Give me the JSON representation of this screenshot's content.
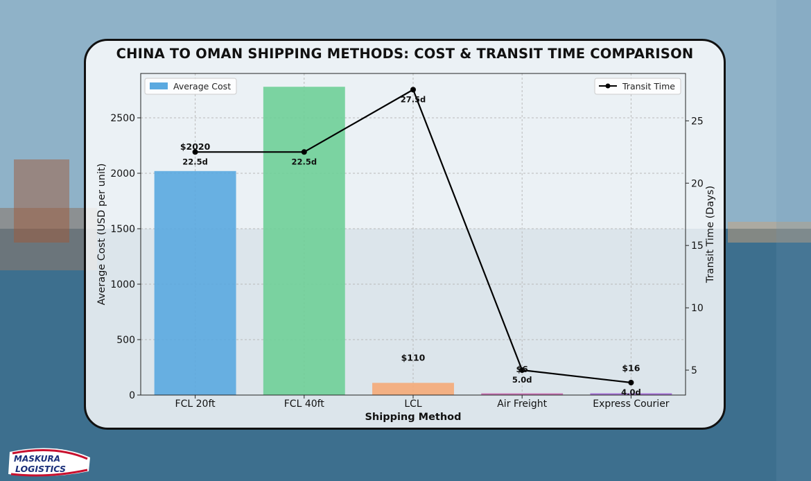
{
  "chart_data": {
    "type": "bar+line",
    "title": "CHINA TO OMAN SHIPPING METHODS: COST & TRANSIT TIME COMPARISON",
    "xlabel": "Shipping Method",
    "ylabel_left": "Average Cost (USD per unit)",
    "ylabel_right": "Transit Time (Days)",
    "categories": [
      "FCL 20ft",
      "FCL 40ft",
      "LCL",
      "Air Freight",
      "Express Courier"
    ],
    "bar_series": {
      "name": "Average Cost",
      "values": [
        2020,
        2780,
        110,
        6,
        16
      ],
      "value_labels": [
        "$2020",
        "",
        "$110",
        "$6",
        "$16"
      ],
      "colors": [
        "#5aa9e0",
        "#6fcf98",
        "#f5aa78",
        "#c86ab0",
        "#a36ad6"
      ]
    },
    "line_series": {
      "name": "Transit Time",
      "values": [
        22.5,
        22.5,
        27.5,
        5.0,
        4.0
      ],
      "value_labels": [
        "22.5d",
        "22.5d",
        "27.5d",
        "5.0d",
        "4.0d"
      ],
      "color": "#000000"
    },
    "ylim_left": [
      0,
      2900
    ],
    "yticks_left": [
      0,
      500,
      1000,
      1500,
      2000,
      2500
    ],
    "ylim_right": [
      3.0,
      28.8
    ],
    "yticks_right": [
      5,
      10,
      15,
      20,
      25
    ],
    "grid": true,
    "legend_left": "top-left",
    "legend_right": "top-right"
  },
  "logo": {
    "line1": "MASKURA",
    "line2": "LOGISTICS"
  }
}
